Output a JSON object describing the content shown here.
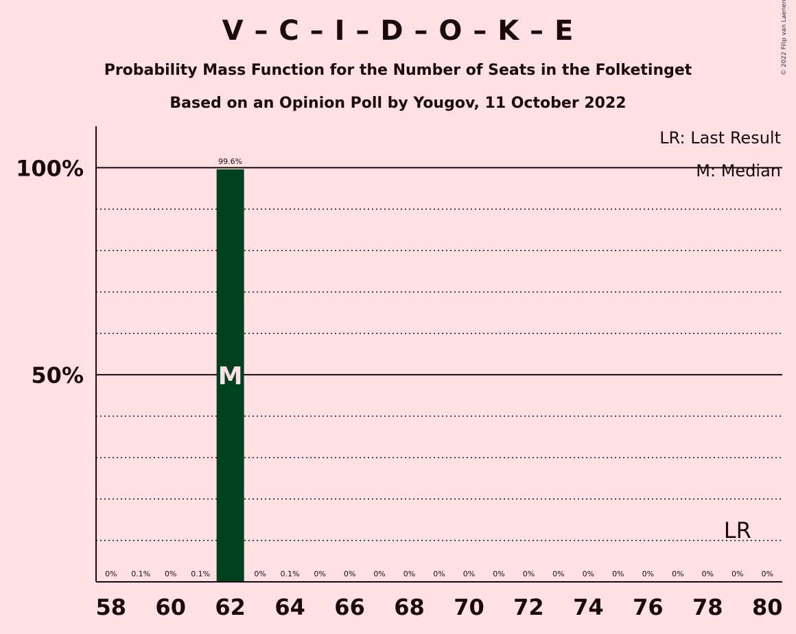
{
  "title": "V – C – I – D – O – K – E",
  "subtitle": "Probability Mass Function for the Number of Seats in the Folketinget",
  "subtitle2": "Based on an Opinion Poll by Yougov, 11 October 2022",
  "copyright": "© 2022 Filip van Laenen",
  "legend": {
    "last_result": "LR: Last Result",
    "median": "M: Median"
  },
  "colors": {
    "background": "#FFE0E5",
    "bar": "#00401E",
    "text": "#1a0a0a"
  },
  "chart_data": {
    "type": "bar",
    "x": [
      58,
      59,
      60,
      61,
      62,
      63,
      64,
      65,
      66,
      67,
      68,
      69,
      70,
      71,
      72,
      73,
      74,
      75,
      76,
      77,
      78,
      79,
      80
    ],
    "values": [
      0,
      0.1,
      0,
      0.1,
      99.6,
      0,
      0.1,
      0,
      0,
      0,
      0,
      0,
      0,
      0,
      0,
      0,
      0,
      0,
      0,
      0,
      0,
      0,
      0
    ],
    "value_labels": [
      "0%",
      "0.1%",
      "0%",
      "0.1%",
      "99.6%",
      "0%",
      "0.1%",
      "0%",
      "0%",
      "0%",
      "0%",
      "0%",
      "0%",
      "0%",
      "0%",
      "0%",
      "0%",
      "0%",
      "0%",
      "0%",
      "0%",
      "0%",
      "0%"
    ],
    "x_tick_labels": [
      "58",
      "60",
      "62",
      "64",
      "66",
      "68",
      "70",
      "72",
      "74",
      "76",
      "78",
      "80"
    ],
    "y_tick_labels": [
      "50%",
      "100%"
    ],
    "y_ticks": [
      50,
      100
    ],
    "ylim": [
      0,
      110
    ],
    "xlim": [
      57.5,
      80.5
    ],
    "gridlines_dotted_every": 10,
    "median_seat": 62,
    "median_marker": "M",
    "last_result_seat": 79,
    "last_result_marker": "LR",
    "legend_position": "top-right"
  }
}
